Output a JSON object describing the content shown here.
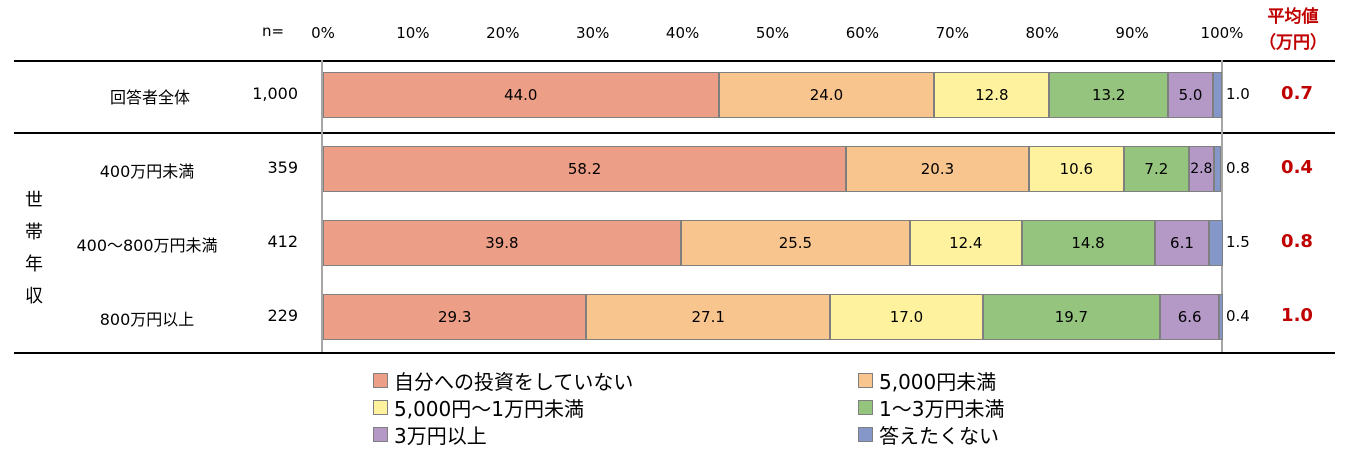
{
  "chart_data": {
    "type": "bar",
    "orientation": "horizontal-stacked-100",
    "n_header": "n=",
    "avg_header": [
      "平均値",
      "（万円）"
    ],
    "x_ticks": [
      "0%",
      "10%",
      "20%",
      "30%",
      "40%",
      "50%",
      "60%",
      "70%",
      "80%",
      "90%",
      "100%"
    ],
    "group_label": "世帯年収",
    "categories": [
      "回答者全体",
      "400万円未満",
      "400～800万円未満",
      "800万円以上"
    ],
    "n": [
      "1,000",
      "359",
      "412",
      "229"
    ],
    "averages": [
      "0.7",
      "0.4",
      "0.8",
      "1.0"
    ],
    "series": [
      {
        "name": "自分への投資をしていない",
        "color": "#ec9e87",
        "values": [
          44.0,
          58.2,
          39.8,
          29.3
        ],
        "labels": [
          "44.0",
          "58.2",
          "39.8",
          "29.3"
        ]
      },
      {
        "name": "5,000円未満",
        "color": "#f9c58f",
        "values": [
          24.0,
          20.3,
          25.5,
          27.1
        ],
        "labels": [
          "24.0",
          "20.3",
          "25.5",
          "27.1"
        ]
      },
      {
        "name": "5,000円～1万円未満",
        "color": "#fef29e",
        "values": [
          12.8,
          10.6,
          12.4,
          17.0
        ],
        "labels": [
          "12.8",
          "10.6",
          "12.4",
          "17.0"
        ]
      },
      {
        "name": "1～3万円未満",
        "color": "#94c47d",
        "values": [
          13.2,
          7.2,
          14.8,
          19.7
        ],
        "labels": [
          "13.2",
          "7.2",
          "14.8",
          "19.7"
        ]
      },
      {
        "name": "3万円以上",
        "color": "#b498c6",
        "values": [
          5.0,
          2.8,
          6.1,
          6.6
        ],
        "labels": [
          "5.0",
          "2.8",
          "6.1",
          "6.6"
        ]
      },
      {
        "name": "答えたくない",
        "color": "#8497c8",
        "values": [
          1.0,
          0.8,
          1.5,
          0.4
        ],
        "labels": [
          "1.0",
          "0.8",
          "1.5",
          "0.4"
        ]
      }
    ]
  }
}
